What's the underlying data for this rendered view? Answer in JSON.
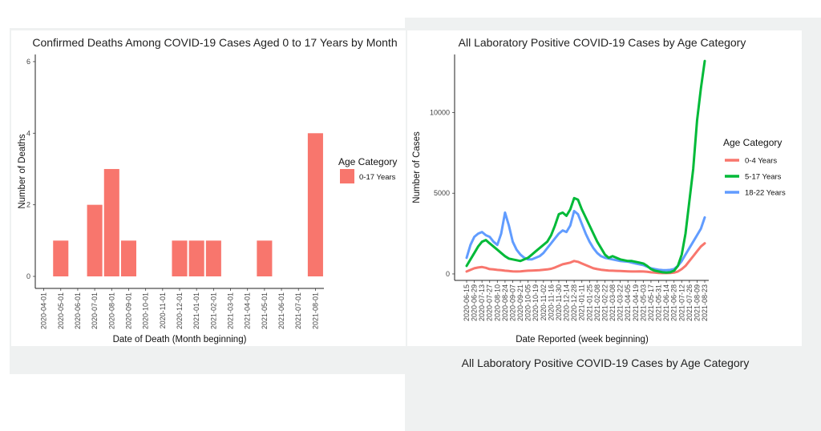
{
  "colors": {
    "page_background": "#eff1f1",
    "panel_background": "#ffffff",
    "bar_fill": "#f8766d",
    "series_0_4": "#f8766d",
    "series_5_17": "#00ba38",
    "series_18_22": "#619cff"
  },
  "chart_data": [
    {
      "type": "bar",
      "title": "Confirmed Deaths Among COVID-19 Cases Aged 0 to 17 Years by Month",
      "xlabel": "Date of Death (Month beginning)",
      "ylabel": "Number of Deaths",
      "ylim": [
        0,
        6.2
      ],
      "yticks": [
        0,
        2,
        4,
        6
      ],
      "grid": false,
      "legend_position": "right",
      "legend_title": "Age Category",
      "categories": [
        "2020-04-01",
        "2020-05-01",
        "2020-06-01",
        "2020-07-01",
        "2020-08-01",
        "2020-09-01",
        "2020-10-01",
        "2020-11-01",
        "2020-12-01",
        "2021-01-01",
        "2021-02-01",
        "2021-03-01",
        "2021-04-01",
        "2021-05-01",
        "2021-06-01",
        "2021-07-01",
        "2021-08-01"
      ],
      "series": [
        {
          "name": "0-17 Years",
          "values": [
            0,
            1,
            0,
            2,
            3,
            1,
            0,
            0,
            1,
            1,
            1,
            0,
            0,
            1,
            0,
            0,
            4
          ]
        }
      ]
    },
    {
      "type": "line",
      "title": "All Laboratory Positive COVID-19 Cases by Age Category",
      "xlabel": "Date Reported (week beginning)",
      "ylabel": "Number of Cases",
      "ylim": [
        -400,
        13600
      ],
      "yticks": [
        0,
        5000,
        10000
      ],
      "grid": false,
      "legend_position": "right",
      "legend_title": "Age Category",
      "x_tick_labels": [
        "2020-06-15",
        "2020-06-29",
        "2020-07-13",
        "2020-07-27",
        "2020-08-10",
        "2020-08-24",
        "2020-09-07",
        "2020-09-21",
        "2020-10-05",
        "2020-10-19",
        "2020-11-02",
        "2020-11-16",
        "2020-11-30",
        "2020-12-14",
        "2020-12-28",
        "2021-01-11",
        "2021-01-25",
        "2021-02-08",
        "2021-02-22",
        "2021-03-08",
        "2021-03-22",
        "2021-04-05",
        "2021-04-19",
        "2021-05-03",
        "2021-05-17",
        "2021-05-31",
        "2021-06-14",
        "2021-06-28",
        "2021-07-12",
        "2021-07-26",
        "2021-08-09",
        "2021-08-23"
      ],
      "x": [
        "2020-06-15",
        "2020-06-22",
        "2020-06-29",
        "2020-07-06",
        "2020-07-13",
        "2020-07-20",
        "2020-07-27",
        "2020-08-03",
        "2020-08-10",
        "2020-08-17",
        "2020-08-24",
        "2020-08-31",
        "2020-09-07",
        "2020-09-14",
        "2020-09-21",
        "2020-09-28",
        "2020-10-05",
        "2020-10-12",
        "2020-10-19",
        "2020-10-26",
        "2020-11-02",
        "2020-11-09",
        "2020-11-16",
        "2020-11-23",
        "2020-11-30",
        "2020-12-07",
        "2020-12-14",
        "2020-12-21",
        "2020-12-28",
        "2021-01-04",
        "2021-01-11",
        "2021-01-18",
        "2021-01-25",
        "2021-02-01",
        "2021-02-08",
        "2021-02-15",
        "2021-02-22",
        "2021-03-01",
        "2021-03-08",
        "2021-03-15",
        "2021-03-22",
        "2021-03-29",
        "2021-04-05",
        "2021-04-12",
        "2021-04-19",
        "2021-04-26",
        "2021-05-03",
        "2021-05-10",
        "2021-05-17",
        "2021-05-24",
        "2021-05-31",
        "2021-06-07",
        "2021-06-14",
        "2021-06-21",
        "2021-06-28",
        "2021-07-05",
        "2021-07-12",
        "2021-07-19",
        "2021-07-26",
        "2021-08-02",
        "2021-08-09",
        "2021-08-16",
        "2021-08-23"
      ],
      "series": [
        {
          "name": "0-4 Years",
          "values": [
            150,
            250,
            350,
            400,
            430,
            380,
            300,
            280,
            250,
            230,
            200,
            180,
            160,
            150,
            160,
            180,
            200,
            210,
            220,
            230,
            260,
            280,
            320,
            400,
            500,
            600,
            650,
            700,
            800,
            750,
            650,
            550,
            450,
            350,
            300,
            260,
            230,
            210,
            200,
            190,
            180,
            170,
            160,
            150,
            150,
            160,
            150,
            130,
            100,
            80,
            60,
            50,
            50,
            60,
            80,
            150,
            300,
            500,
            800,
            1100,
            1400,
            1700,
            1900
          ]
        },
        {
          "name": "5-17 Years",
          "values": [
            500,
            900,
            1300,
            1700,
            2000,
            2100,
            1900,
            1700,
            1500,
            1300,
            1100,
            950,
            900,
            850,
            800,
            900,
            1000,
            1200,
            1400,
            1600,
            1800,
            2000,
            2400,
            3000,
            3700,
            3800,
            3600,
            4000,
            4700,
            4600,
            4000,
            3500,
            3000,
            2500,
            2000,
            1600,
            1200,
            1000,
            1100,
            1000,
            900,
            850,
            800,
            800,
            750,
            700,
            650,
            500,
            300,
            200,
            150,
            100,
            80,
            100,
            200,
            500,
            1200,
            2500,
            4500,
            6500,
            9500,
            11500,
            13200
          ]
        },
        {
          "name": "18-22 Years",
          "values": [
            1000,
            1800,
            2300,
            2500,
            2600,
            2400,
            2300,
            2000,
            1800,
            2500,
            3800,
            3000,
            2000,
            1500,
            1200,
            1000,
            900,
            900,
            1000,
            1100,
            1300,
            1600,
            1900,
            2200,
            2500,
            2700,
            2600,
            3000,
            3900,
            3700,
            3100,
            2500,
            2000,
            1600,
            1300,
            1100,
            1000,
            950,
            900,
            850,
            800,
            780,
            760,
            700,
            650,
            600,
            550,
            450,
            350,
            300,
            260,
            240,
            230,
            250,
            300,
            500,
            800,
            1200,
            1600,
            2000,
            2400,
            2800,
            3500
          ]
        }
      ]
    },
    {
      "type": "line",
      "title": "All Laboratory Positive COVID-19 Cases by Age Category"
    }
  ]
}
